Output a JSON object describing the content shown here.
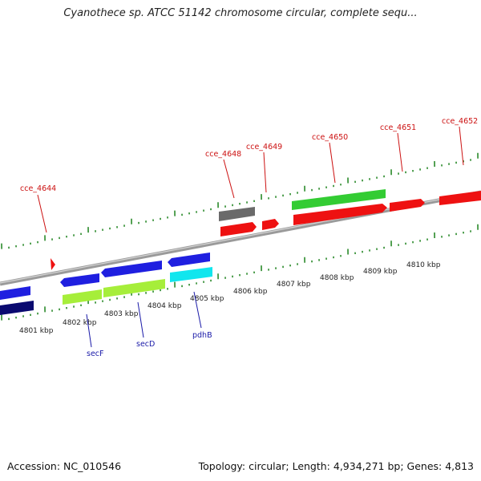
{
  "title": "Cyanothece sp. ATCC 51142 chromosome circular, complete sequ...",
  "footer": {
    "accession": "Accession: NC_010546",
    "summary": "Topology: circular; Length: 4,934,271 bp; Genes: 4,813"
  },
  "colors": {
    "backbone": "#8c8c8c",
    "tick": "#2a8a2a",
    "red_gene": "#ee1111",
    "blue_gene": "#1f1fe0",
    "navy_gene": "#0a0a70",
    "green_gene": "#33cc33",
    "lime_gene": "#a6ee3a",
    "cyan_gene": "#11e6ee",
    "gray_gene": "#6a6a6a",
    "label_red": "#cc1111",
    "label_blue": "#1a1aa8"
  },
  "kbp_labels": [
    "4801 kbp",
    "4802 kbp",
    "4803 kbp",
    "4804 kbp",
    "4805 kbp",
    "4806 kbp",
    "4807 kbp",
    "4808 kbp",
    "4809 kbp",
    "4810 kbp"
  ],
  "gene_labels_top": [
    "cce_4644",
    "cce_4648",
    "cce_4649",
    "cce_4650",
    "cce_4651",
    "cce_4652"
  ],
  "gene_labels_bottom": [
    "secF",
    "secD",
    "pdhB"
  ]
}
